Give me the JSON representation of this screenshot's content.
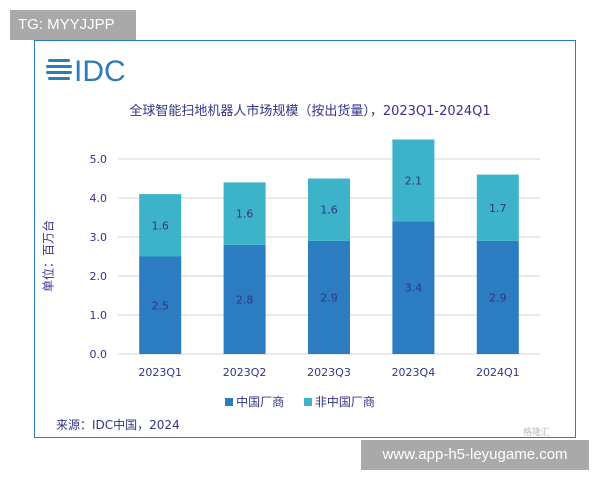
{
  "watermark_top": "TG: MYYJJPP",
  "watermark_bottom": "www.app-h5-leyugame.com",
  "corner_logo": "格隆汇",
  "logo_text": "IDC",
  "chart_data": {
    "type": "bar",
    "stacked": true,
    "title": "全球智能扫地机器人市场规模（按出货量），2023Q1-2024Q1",
    "ylabel": "单位：百万台",
    "xlabel": "",
    "categories": [
      "2023Q1",
      "2023Q2",
      "2023Q3",
      "2023Q4",
      "2024Q1"
    ],
    "series": [
      {
        "name": "中国厂商",
        "values": [
          2.5,
          2.8,
          2.9,
          3.4,
          2.9
        ],
        "color": "#2b7cc1"
      },
      {
        "name": "非中国厂商",
        "values": [
          1.6,
          1.6,
          1.6,
          2.1,
          1.7
        ],
        "color": "#3db3c9"
      }
    ],
    "ylim": [
      0,
      5.0
    ],
    "yticks": [
      "0.0",
      "1.0",
      "2.0",
      "3.0",
      "4.0",
      "5.0"
    ],
    "grid": true,
    "legend": "bottom",
    "source": "来源：IDC中国，2024"
  }
}
